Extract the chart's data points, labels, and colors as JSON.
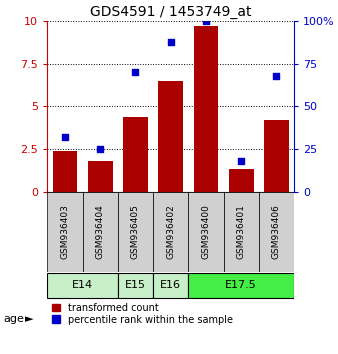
{
  "title": "GDS4591 / 1453749_at",
  "samples": [
    "GSM936403",
    "GSM936404",
    "GSM936405",
    "GSM936402",
    "GSM936400",
    "GSM936401",
    "GSM936406"
  ],
  "transformed_count": [
    2.4,
    1.8,
    4.4,
    6.5,
    9.7,
    1.3,
    4.2
  ],
  "percentile_rank": [
    32,
    25,
    70,
    88,
    100,
    18,
    68
  ],
  "age_groups": [
    {
      "label": "E14",
      "samples": [
        0,
        1
      ],
      "color": "#c8f0c8"
    },
    {
      "label": "E15",
      "samples": [
        2
      ],
      "color": "#c8f0c8"
    },
    {
      "label": "E16",
      "samples": [
        3
      ],
      "color": "#c8f0c8"
    },
    {
      "label": "E17.5",
      "samples": [
        4,
        5,
        6
      ],
      "color": "#44ee44"
    }
  ],
  "bar_color": "#aa0000",
  "dot_color": "#0000cc",
  "left_ylim": [
    0,
    10
  ],
  "left_yticks": [
    0,
    2.5,
    5,
    7.5,
    10
  ],
  "right_ylim": [
    0,
    100
  ],
  "right_yticks": [
    0,
    25,
    50,
    75,
    100
  ],
  "grid_color": "black",
  "sample_bg": "#d0d0d0",
  "plot_bg": "#ffffff",
  "left_axis_color": "#cc0000",
  "right_axis_color": "#0000cc"
}
